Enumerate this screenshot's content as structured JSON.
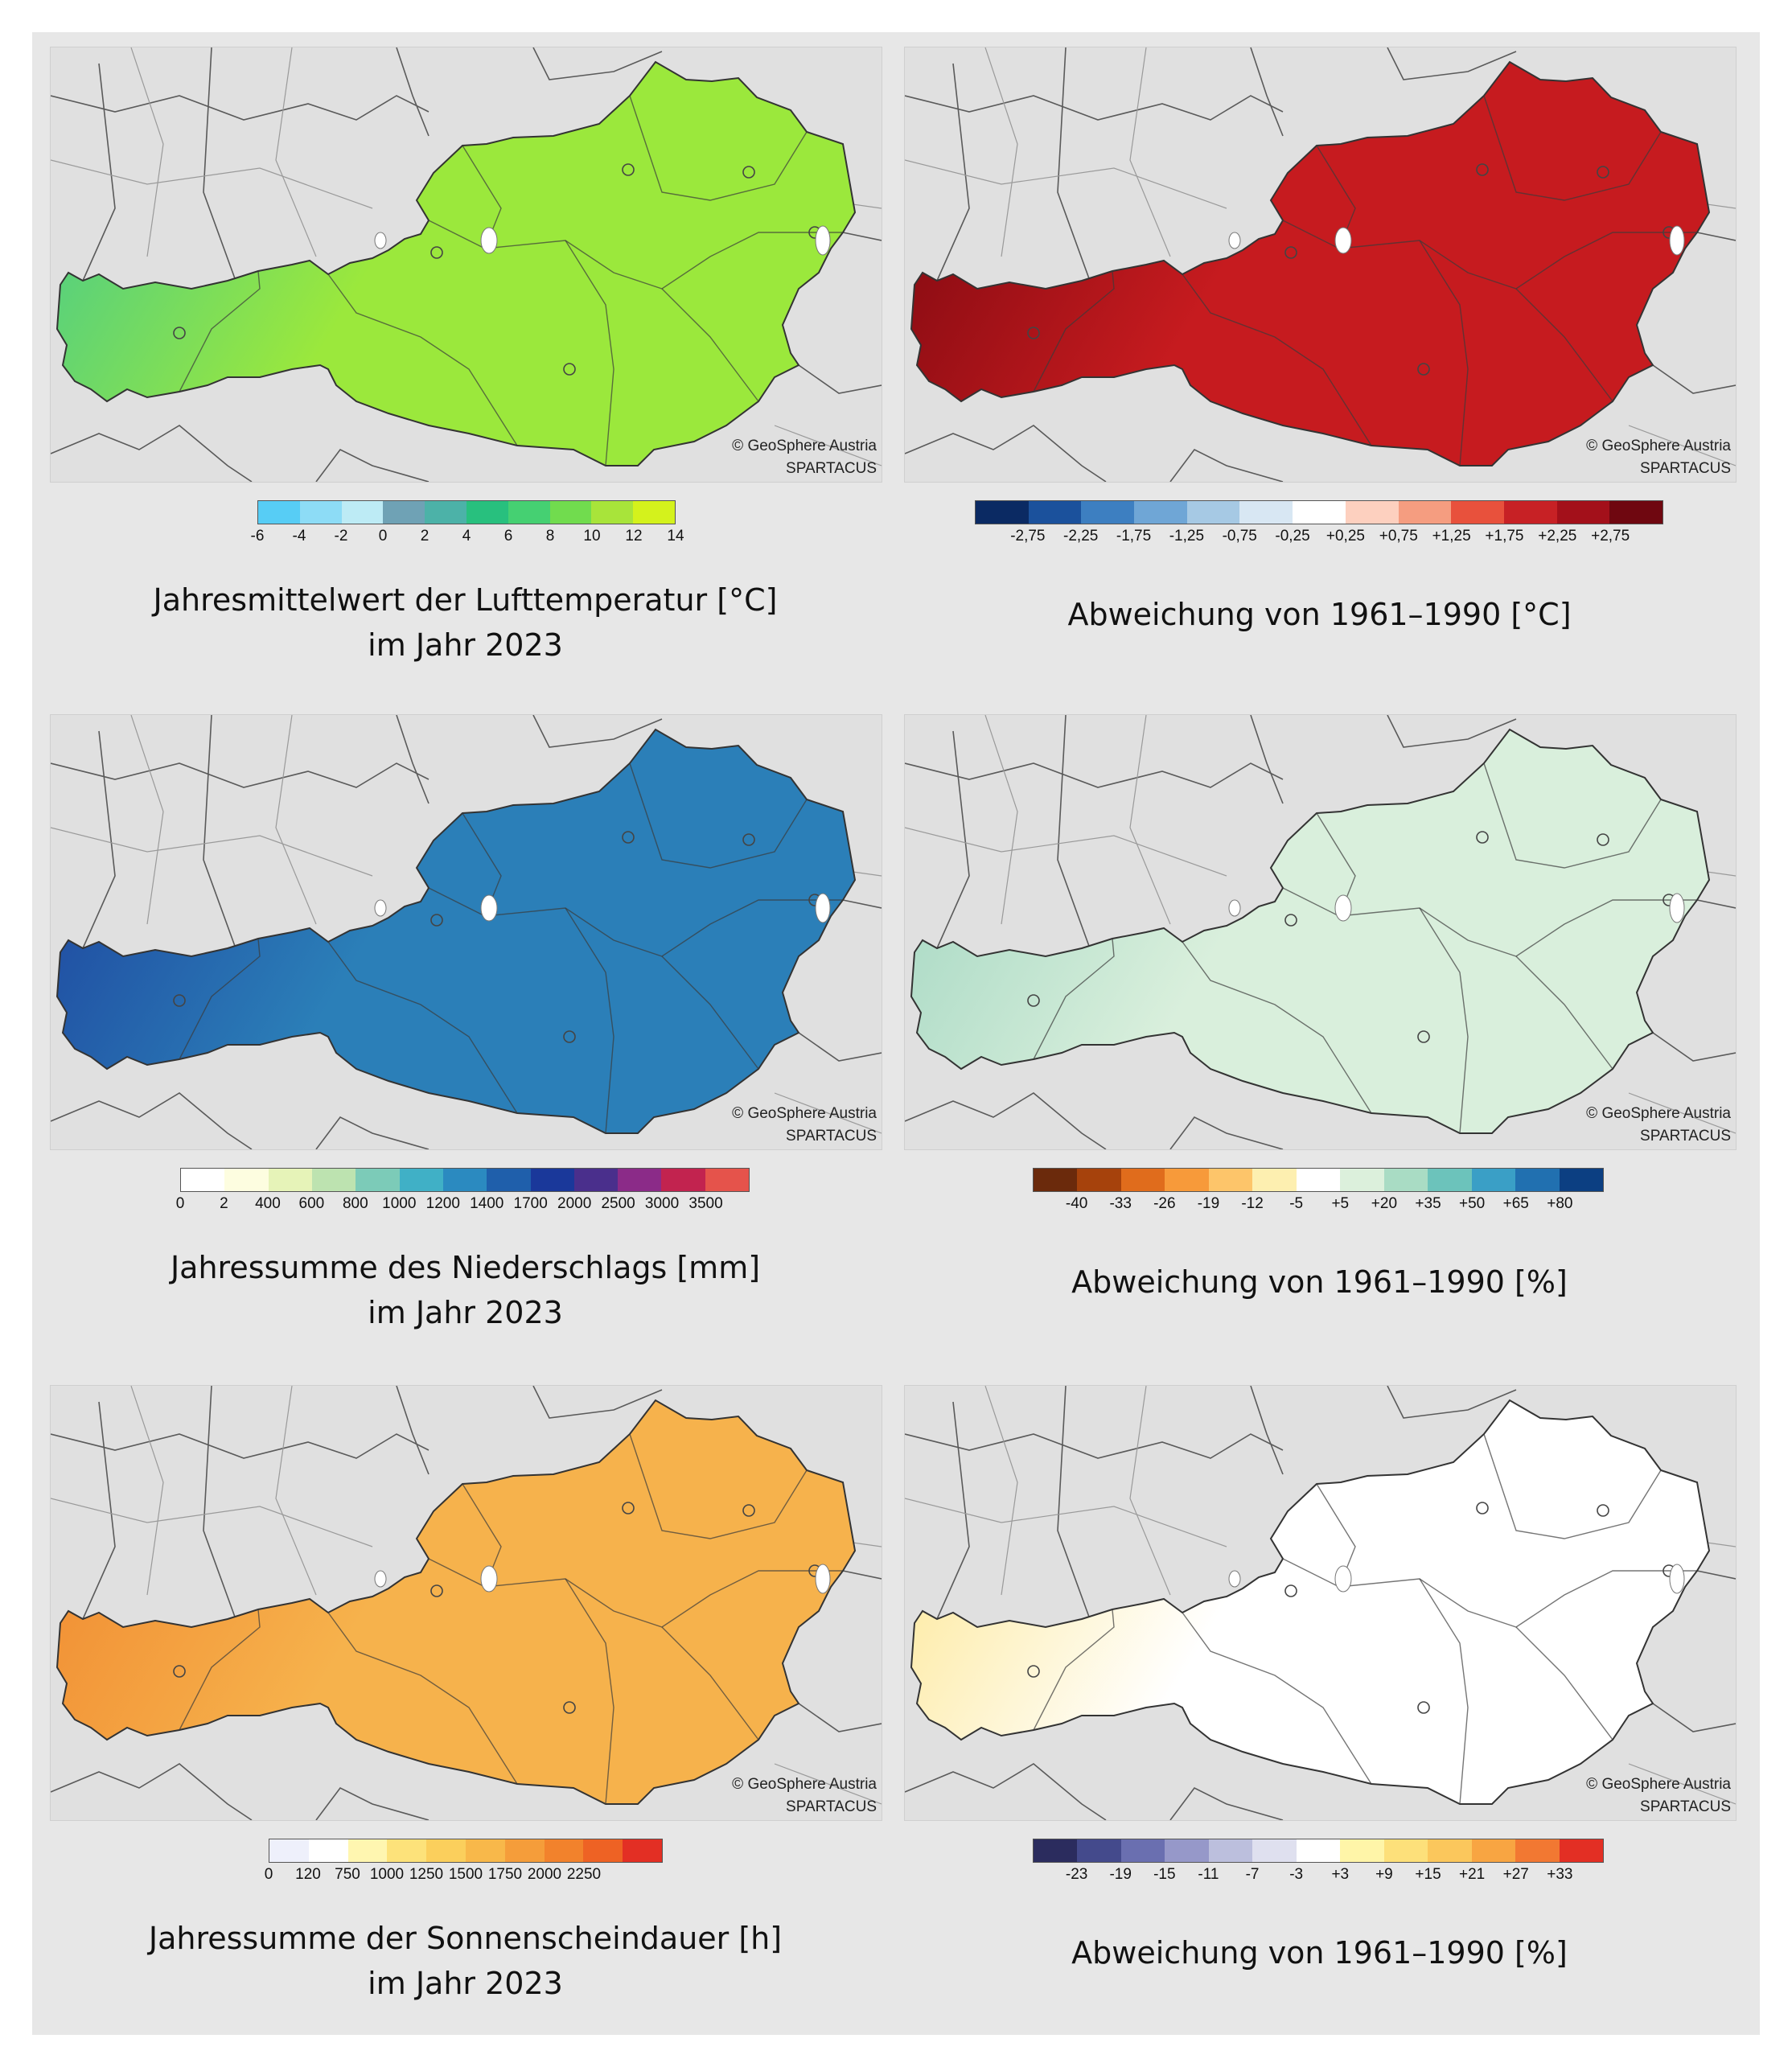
{
  "panels": [
    {
      "caption_line1": "Jahresmittelwert der Lufttemperatur [°C]",
      "caption_line2": "im Jahr 2023",
      "credit1": "© GeoSphere Austria",
      "credit2": "SPARTACUS",
      "fill": "#9be83c",
      "fill2": "#3fc894",
      "colors": [
        "#57cdf5",
        "#8ddcf6",
        "#bdebf5",
        "#6fa2b5",
        "#4cb2a8",
        "#28c07e",
        "#45d072",
        "#71dc4e",
        "#a8e43a",
        "#d4f21c"
      ],
      "ticks": [
        "-6",
        "-4",
        "-2",
        "0",
        "2",
        "4",
        "6",
        "8",
        "10",
        "12",
        "14"
      ]
    },
    {
      "caption_line1": "Abweichung von 1961–1990 [°C]",
      "caption_line2": "",
      "credit1": "© GeoSphere Austria",
      "credit2": "SPARTACUS",
      "fill": "#c61b1f",
      "fill2": "#78070f",
      "colors": [
        "#0b2a63",
        "#1b519c",
        "#3d7fc1",
        "#6fa6d6",
        "#a6c9e4",
        "#d8e7f3",
        "#ffffff",
        "#fdd0bf",
        "#f59d80",
        "#e8513c",
        "#c72125",
        "#a3101a",
        "#6f0710"
      ],
      "ticks": [
        "-2,75",
        "-2,25",
        "-1,75",
        "-1,25",
        "-0,75",
        "-0,25",
        "+0,25",
        "+0,75",
        "+1,25",
        "+1,75",
        "+2,25",
        "+2,75"
      ]
    },
    {
      "caption_line1": "Jahressumme des Niederschlags [mm]",
      "caption_line2": "im Jahr 2023",
      "credit1": "© GeoSphere Austria",
      "credit2": "SPARTACUS",
      "fill": "#2b7fb8",
      "fill2": "#1d3f9c",
      "colors": [
        "#ffffff",
        "#fdfde0",
        "#e6f3b8",
        "#bde3b0",
        "#7ccbb8",
        "#40b0c6",
        "#2b8ac0",
        "#1f5fab",
        "#1a389a",
        "#4a2f8c",
        "#8b2b88",
        "#c2234f",
        "#e5534b"
      ],
      "ticks": [
        "0",
        "2",
        "400",
        "600",
        "800",
        "1000",
        "1200",
        "1400",
        "1700",
        "2000",
        "2500",
        "3000",
        "3500"
      ]
    },
    {
      "caption_line1": "Abweichung von 1961–1990 [%]",
      "caption_line2": "",
      "credit1": "© GeoSphere Austria",
      "credit2": "SPARTACUS",
      "fill": "#d9efdc",
      "fill2": "#9fd5c0",
      "colors": [
        "#6b2a0c",
        "#a6420c",
        "#e06c1c",
        "#f79a3a",
        "#fdc56a",
        "#fdefb0",
        "#ffffff",
        "#dcf0dc",
        "#a9dcc4",
        "#6cc3bb",
        "#3a9fc6",
        "#2170b0",
        "#0c3f82"
      ],
      "ticks": [
        "-40",
        "-33",
        "-26",
        "-19",
        "-12",
        "-5",
        "+5",
        "+20",
        "+35",
        "+50",
        "+65",
        "+80"
      ]
    },
    {
      "caption_line1": "Jahressumme der Sonnenscheindauer [h]",
      "caption_line2": "im Jahr 2023",
      "credit1": "© GeoSphere Austria",
      "credit2": "SPARTACUS",
      "fill": "#f6b24c",
      "fill2": "#f0862e",
      "colors": [
        "#eef0fb",
        "#ffffff",
        "#fff6b0",
        "#fde27a",
        "#fbcf5c",
        "#f8b84a",
        "#f59d3a",
        "#f2822c",
        "#ee6224",
        "#e32f24"
      ],
      "ticks": [
        "0",
        "120",
        "750",
        "1000",
        "1250",
        "1500",
        "1750",
        "2000",
        "2250"
      ]
    },
    {
      "caption_line1": "Abweichung von 1961–1990 [%]",
      "caption_line2": "",
      "credit1": "© GeoSphere Austria",
      "credit2": "SPARTACUS",
      "fill": "#ffffff",
      "fill2": "#fde58a",
      "colors": [
        "#2b2c5e",
        "#444a8c",
        "#6a6fb0",
        "#9698c9",
        "#bcbfdd",
        "#dfe0ef",
        "#ffffff",
        "#fff5a8",
        "#fde07a",
        "#fbc75c",
        "#f8a542",
        "#f27832",
        "#e32f24"
      ],
      "ticks": [
        "-23",
        "-19",
        "-15",
        "-11",
        "-7",
        "-3",
        "+3",
        "+9",
        "+15",
        "+21",
        "+27",
        "+33"
      ]
    }
  ]
}
